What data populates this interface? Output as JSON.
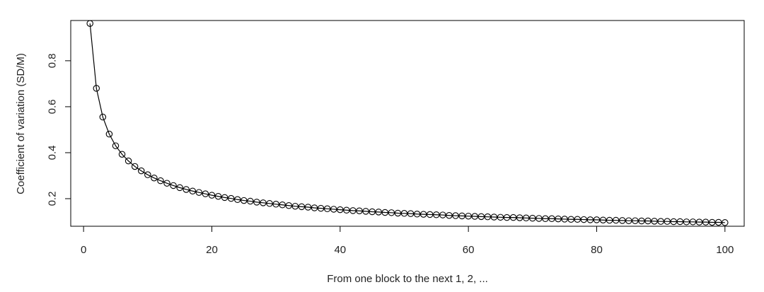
{
  "chart_data": {
    "type": "line",
    "title": "",
    "xlabel": "From one block to the next 1, 2, ...",
    "ylabel": "Coefficient of variation (SD/M)",
    "xlim": [
      -2,
      103
    ],
    "ylim": [
      0.08,
      0.975
    ],
    "x_ticks": [
      0,
      20,
      40,
      60,
      80,
      100
    ],
    "x_tick_labels": [
      "0",
      "20",
      "40",
      "60",
      "80",
      "100"
    ],
    "y_ticks": [
      0.2,
      0.4,
      0.6,
      0.8
    ],
    "y_tick_labels": [
      "0.2",
      "0.4",
      "0.6",
      "0.8"
    ],
    "grid": false,
    "marker": "open-circle",
    "line_color": "#000000",
    "series": [
      {
        "x": [
          1,
          2,
          3,
          4,
          5,
          6,
          7,
          8,
          9,
          10,
          11,
          12,
          13,
          14,
          15,
          16,
          17,
          18,
          19,
          20,
          21,
          22,
          23,
          24,
          25,
          26,
          27,
          28,
          29,
          30,
          31,
          32,
          33,
          34,
          35,
          36,
          37,
          38,
          39,
          40,
          41,
          42,
          43,
          44,
          45,
          46,
          47,
          48,
          49,
          50,
          51,
          52,
          53,
          54,
          55,
          56,
          57,
          58,
          59,
          60,
          61,
          62,
          63,
          64,
          65,
          66,
          67,
          68,
          69,
          70,
          71,
          72,
          73,
          74,
          75,
          76,
          77,
          78,
          79,
          80,
          81,
          82,
          83,
          84,
          85,
          86,
          87,
          88,
          89,
          90,
          91,
          92,
          93,
          94,
          95,
          96,
          97,
          98,
          99,
          100
        ],
        "y": [
          0.962,
          0.68,
          0.555,
          0.481,
          0.43,
          0.393,
          0.364,
          0.34,
          0.321,
          0.304,
          0.29,
          0.278,
          0.267,
          0.257,
          0.248,
          0.24,
          0.233,
          0.227,
          0.221,
          0.215,
          0.21,
          0.205,
          0.201,
          0.196,
          0.192,
          0.189,
          0.185,
          0.182,
          0.179,
          0.176,
          0.173,
          0.17,
          0.167,
          0.165,
          0.163,
          0.16,
          0.158,
          0.156,
          0.154,
          0.152,
          0.15,
          0.148,
          0.147,
          0.145,
          0.143,
          0.142,
          0.14,
          0.139,
          0.137,
          0.136,
          0.135,
          0.133,
          0.132,
          0.131,
          0.13,
          0.129,
          0.127,
          0.126,
          0.125,
          0.124,
          0.123,
          0.122,
          0.121,
          0.12,
          0.119,
          0.118,
          0.118,
          0.117,
          0.116,
          0.115,
          0.114,
          0.113,
          0.113,
          0.112,
          0.111,
          0.11,
          0.11,
          0.109,
          0.108,
          0.108,
          0.107,
          0.106,
          0.106,
          0.105,
          0.104,
          0.104,
          0.103,
          0.103,
          0.102,
          0.101,
          0.101,
          0.1,
          0.1,
          0.099,
          0.099,
          0.098,
          0.098,
          0.097,
          0.097,
          0.096
        ]
      }
    ]
  }
}
